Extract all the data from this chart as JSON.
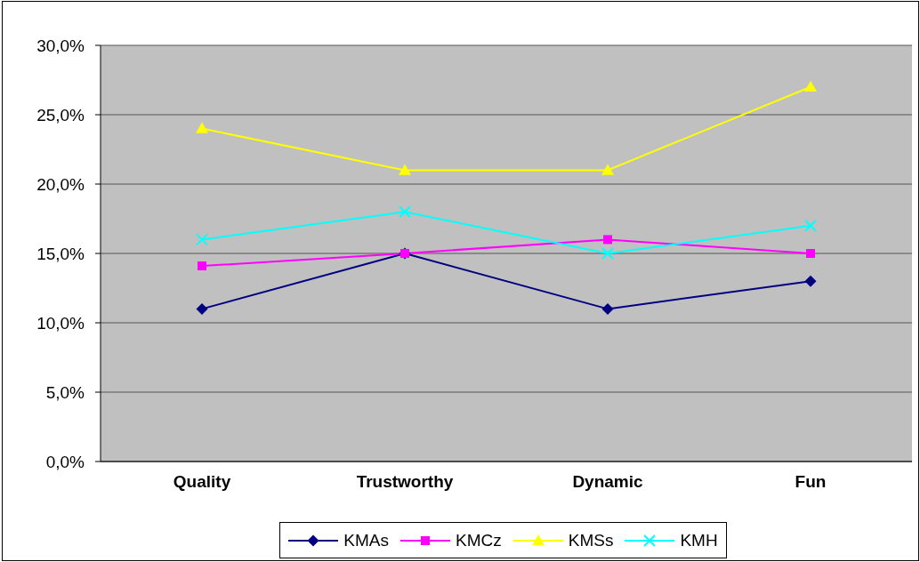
{
  "chart_data": {
    "type": "line",
    "categories": [
      "Quality",
      "Trustworthy",
      "Dynamic",
      "Fun"
    ],
    "series": [
      {
        "name": "KMAs",
        "color": "#000080",
        "marker": "diamond",
        "values": [
          11,
          15,
          11,
          13
        ]
      },
      {
        "name": "KMCz",
        "color": "#ff00ff",
        "marker": "square",
        "values": [
          14.1,
          15,
          16,
          15
        ]
      },
      {
        "name": "KMSs",
        "color": "#ffff00",
        "marker": "triangle",
        "values": [
          24,
          21,
          21,
          27
        ]
      },
      {
        "name": "KMH",
        "color": "#00ffff",
        "marker": "cross",
        "values": [
          16,
          18,
          15,
          17
        ]
      }
    ],
    "ylim": [
      0,
      30
    ],
    "yticks": [
      {
        "value": 0,
        "label": "0,0%"
      },
      {
        "value": 5,
        "label": "5,0%"
      },
      {
        "value": 10,
        "label": "10,0%"
      },
      {
        "value": 15,
        "label": "15,0%"
      },
      {
        "value": 20,
        "label": "20,0%"
      },
      {
        "value": 25,
        "label": "25,0%"
      },
      {
        "value": 30,
        "label": "30,0%"
      }
    ],
    "grid": "y",
    "legend": "bottom"
  }
}
